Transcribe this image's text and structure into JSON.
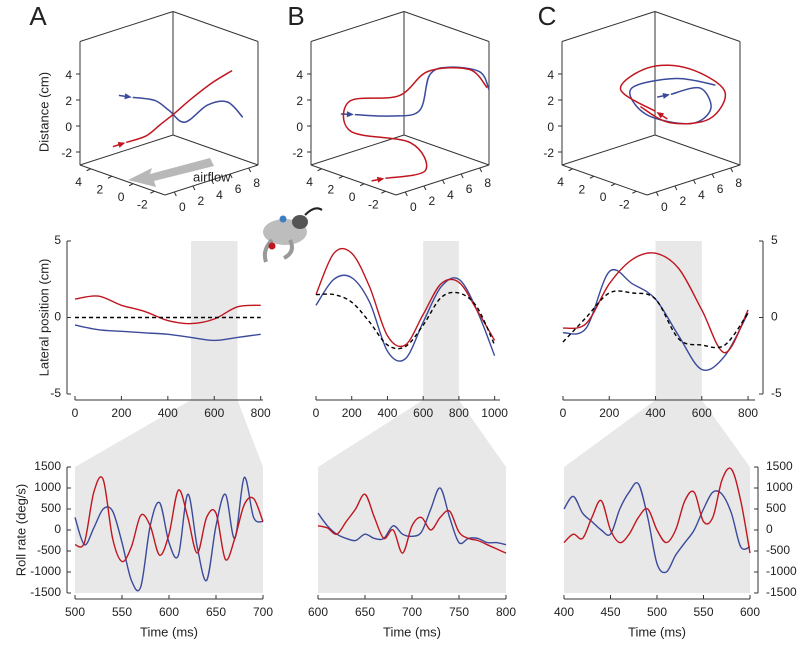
{
  "chart_data": [
    {
      "type": "line3d",
      "panel": "A",
      "zlabel": "Distance (cm)",
      "annotation": "airflow",
      "xlim": [
        -3,
        5
      ],
      "ylim": [
        -1,
        9
      ],
      "zlim": [
        -3,
        6.5
      ],
      "xticks": [
        4,
        2,
        0,
        -2
      ],
      "yticks": [
        0,
        2,
        4,
        6,
        8
      ],
      "zticks": [
        -2,
        0,
        2,
        4
      ],
      "series": [
        {
          "color": "#3b4a9b",
          "x": [
            1,
            1,
            1,
            1,
            0,
            -1,
            -2
          ],
          "y": [
            0.1,
            2.5,
            4,
            5.7,
            7,
            8,
            8.5
          ],
          "z": [
            3.1,
            2.3,
            1.2,
            -0.1,
            1.2,
            1.5,
            0.5
          ]
        },
        {
          "color": "#c0161f",
          "x": [
            1,
            1,
            1,
            1,
            1,
            0,
            -1
          ],
          "y": [
            -0.6,
            1.5,
            3,
            4.5,
            6.3,
            7.5,
            8.5
          ],
          "z": [
            -0.2,
            -0.2,
            0.3,
            0.8,
            1.5,
            2.8,
            3.8
          ]
        }
      ]
    },
    {
      "type": "line3d",
      "panel": "B",
      "xlim": [
        -3,
        5
      ],
      "ylim": [
        -1,
        9
      ],
      "zlim": [
        -3,
        6.5
      ],
      "xticks": [
        4,
        2,
        0,
        -2
      ],
      "yticks": [
        0,
        2,
        4,
        6,
        8
      ],
      "zticks": [
        -2,
        0,
        2,
        4
      ],
      "series": [
        {
          "color": "#3b4a9b",
          "x": [
            1,
            1,
            1,
            1,
            -1,
            -3,
            -3
          ],
          "y": [
            -0.85,
            3,
            6.1,
            7.2,
            7,
            8,
            9
          ],
          "z": [
            2,
            1,
            0.7,
            3.2,
            4.4,
            4.4,
            2.8
          ]
        },
        {
          "color": "#c0161f",
          "x": [
            -2,
            -2,
            0,
            3,
            4,
            2,
            1,
            -2,
            -3
          ],
          "y": [
            -1,
            3.3,
            4,
            1,
            2,
            5,
            7,
            8,
            8.8
          ],
          "z": [
            -2,
            -2.4,
            -1,
            -0.3,
            1.5,
            1.8,
            3.5,
            4.3,
            3
          ]
        }
      ]
    },
    {
      "type": "line3d",
      "panel": "C",
      "xlim": [
        -3,
        5
      ],
      "ylim": [
        -1,
        9
      ],
      "zlim": [
        -3,
        6.5
      ],
      "xticks": [
        4,
        2,
        0,
        -2
      ],
      "yticks": [
        0,
        2,
        4,
        6,
        8
      ],
      "zticks": [
        -2,
        0,
        2,
        4
      ],
      "series": [
        {
          "color": "#3b4a9b",
          "x": [
            0,
            -1,
            -2,
            -1,
            1,
            2,
            0,
            -2
          ],
          "y": [
            5,
            7,
            7,
            6,
            3.5,
            3,
            5.5,
            7.5
          ],
          "z": [
            2.5,
            2.8,
            1.5,
            0.3,
            1,
            2.8,
            3.6,
            3.2
          ]
        },
        {
          "color": "#c0161f",
          "x": [
            1,
            3,
            2,
            0,
            -2,
            -1,
            1,
            2
          ],
          "y": [
            4.5,
            3,
            5,
            7,
            8.5,
            8,
            6,
            4
          ],
          "z": [
            1,
            2.5,
            4,
            4,
            2.5,
            0.2,
            -0.2,
            1.2
          ]
        }
      ]
    },
    {
      "type": "line",
      "ylabel": "Lateral position (cm)",
      "yaxis": "left",
      "xlim": [
        0,
        810
      ],
      "ylim": [
        -5,
        5
      ],
      "xticks": [
        0,
        200,
        400,
        600,
        800
      ],
      "yticks": [
        -5,
        0,
        5
      ],
      "highlight": [
        500,
        700
      ],
      "x": [
        0,
        100,
        200,
        300,
        400,
        500,
        600,
        700,
        800
      ],
      "series": [
        {
          "color": "#3b4a9b",
          "values": [
            -0.5,
            -0.8,
            -0.9,
            -1.0,
            -1.1,
            -1.3,
            -1.5,
            -1.3,
            -1.1
          ]
        },
        {
          "color": "#c0161f",
          "values": [
            1.2,
            1.4,
            0.8,
            0.4,
            -0.2,
            -0.4,
            -0.1,
            0.7,
            0.8
          ]
        },
        {
          "color": "#000000",
          "dash": true,
          "values": [
            0,
            0,
            0,
            0,
            0,
            0,
            0,
            0,
            0
          ]
        }
      ]
    },
    {
      "type": "line",
      "xlim": [
        0,
        1030
      ],
      "ylim": [
        -5,
        5
      ],
      "xticks": [
        0,
        200,
        400,
        600,
        800,
        1000
      ],
      "highlight": [
        600,
        800
      ],
      "x": [
        0,
        100,
        200,
        300,
        400,
        500,
        600,
        700,
        800,
        900,
        1000
      ],
      "series": [
        {
          "color": "#3b4a9b",
          "values": [
            0.8,
            2.5,
            2.6,
            1.0,
            -2.2,
            -2.7,
            -0.3,
            2.0,
            2.5,
            0.5,
            -2.5
          ]
        },
        {
          "color": "#c0161f",
          "values": [
            1.5,
            4.2,
            4.2,
            2.0,
            -1.2,
            -1.8,
            0.2,
            2.2,
            2.3,
            0.5,
            -1.5
          ]
        },
        {
          "color": "#000000",
          "dash": true,
          "values": [
            1.5,
            1.5,
            1.0,
            -0.3,
            -1.8,
            -1.9,
            -0.5,
            1.3,
            1.6,
            0.7,
            -1.8
          ]
        }
      ]
    },
    {
      "type": "line",
      "yaxis": "right",
      "xlim": [
        0,
        830
      ],
      "ylim": [
        -5,
        5
      ],
      "xticks": [
        0,
        200,
        400,
        600,
        800
      ],
      "yticks": [
        -5,
        0,
        5
      ],
      "highlight": [
        400,
        600
      ],
      "x": [
        0,
        100,
        200,
        300,
        400,
        500,
        600,
        700,
        800
      ],
      "series": [
        {
          "color": "#3b4a9b",
          "values": [
            -1.0,
            -0.7,
            3.0,
            2.2,
            1.2,
            -1.2,
            -3.4,
            -2.5,
            0.3
          ]
        },
        {
          "color": "#c0161f",
          "values": [
            -0.7,
            -0.4,
            2.2,
            3.8,
            4.2,
            3.2,
            0.5,
            -2.3,
            0.5
          ]
        },
        {
          "color": "#000000",
          "dash": true,
          "values": [
            -1.6,
            0,
            1.6,
            1.6,
            1.2,
            -1.4,
            -1.8,
            -1.8,
            0.3
          ]
        }
      ]
    },
    {
      "type": "line",
      "ylabel": "Roll rate (deg/s)",
      "xlabel": "Time (ms)",
      "yaxis": "left",
      "xlim": [
        500,
        700
      ],
      "ylim": [
        -1500,
        1500
      ],
      "xticks": [
        500,
        550,
        600,
        650,
        700
      ],
      "yticks": [
        -1500,
        -1000,
        -500,
        0,
        500,
        1000,
        1500
      ],
      "x": [
        500,
        510,
        520,
        530,
        540,
        550,
        560,
        570,
        580,
        590,
        600,
        610,
        620,
        630,
        640,
        650,
        660,
        670,
        680,
        690,
        700
      ],
      "series": [
        {
          "color": "#3b4a9b",
          "values": [
            300,
            -350,
            50,
            500,
            450,
            -300,
            -1200,
            -1350,
            100,
            650,
            -300,
            -600,
            850,
            -400,
            -1200,
            100,
            850,
            -200,
            1250,
            300,
            200
          ]
        },
        {
          "color": "#c0161f",
          "values": [
            -350,
            -300,
            900,
            1200,
            -200,
            -750,
            -400,
            350,
            100,
            -600,
            -100,
            950,
            300,
            -550,
            300,
            400,
            -700,
            -200,
            600,
            750,
            200
          ]
        }
      ]
    },
    {
      "type": "line",
      "xlabel": "Time (ms)",
      "xlim": [
        600,
        800
      ],
      "ylim": [
        -1500,
        1500
      ],
      "xticks": [
        600,
        650,
        700,
        750,
        800
      ],
      "x": [
        600,
        610,
        620,
        630,
        640,
        650,
        660,
        670,
        680,
        690,
        700,
        710,
        720,
        730,
        740,
        750,
        760,
        770,
        780,
        790,
        800
      ],
      "series": [
        {
          "color": "#3b4a9b",
          "values": [
            400,
            100,
            -100,
            -200,
            -250,
            -100,
            -200,
            -200,
            100,
            -100,
            -150,
            -50,
            500,
            1000,
            300,
            -300,
            -200,
            -200,
            -300,
            -300,
            -350
          ]
        },
        {
          "color": "#c0161f",
          "values": [
            100,
            50,
            -100,
            200,
            500,
            850,
            300,
            -200,
            0,
            -550,
            100,
            300,
            0,
            300,
            450,
            -50,
            -200,
            -250,
            -350,
            -450,
            -550
          ]
        }
      ]
    },
    {
      "type": "line",
      "xlabel": "Time (ms)",
      "yaxis": "right",
      "xlim": [
        400,
        600
      ],
      "ylim": [
        -1500,
        1500
      ],
      "xticks": [
        400,
        450,
        500,
        550,
        600
      ],
      "yticks": [
        -1500,
        -1000,
        -500,
        0,
        500,
        1000,
        1500
      ],
      "x": [
        400,
        410,
        420,
        430,
        440,
        450,
        460,
        470,
        480,
        490,
        500,
        510,
        520,
        530,
        540,
        550,
        560,
        570,
        580,
        590,
        600
      ],
      "series": [
        {
          "color": "#3b4a9b",
          "values": [
            500,
            800,
            400,
            200,
            0,
            -100,
            500,
            900,
            1100,
            300,
            -800,
            -1000,
            -600,
            -300,
            0,
            500,
            900,
            850,
            400,
            -400,
            -400
          ]
        },
        {
          "color": "#c0161f",
          "values": [
            -300,
            -100,
            -200,
            300,
            700,
            0,
            -300,
            -100,
            300,
            500,
            0,
            -300,
            0,
            700,
            900,
            200,
            300,
            1200,
            1450,
            700,
            -550
          ]
        }
      ]
    }
  ]
}
